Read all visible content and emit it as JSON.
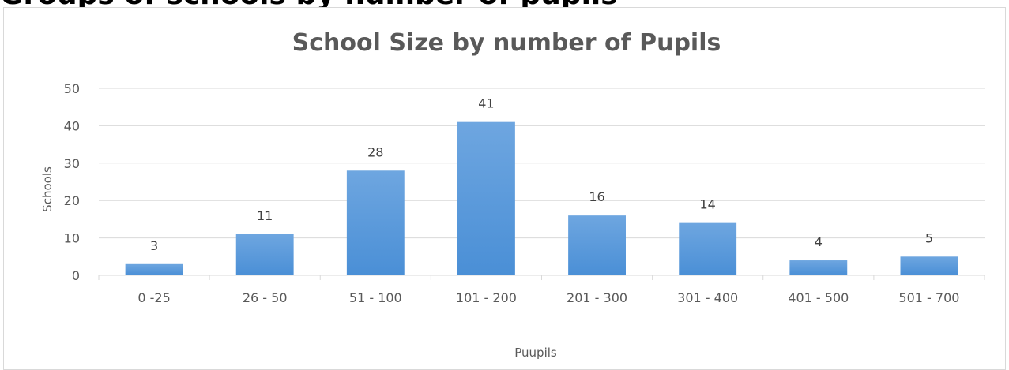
{
  "page": {
    "heading": "Groups of schools by number of pupils"
  },
  "chart_data": {
    "type": "bar",
    "title": "School Size by number of Pupils",
    "xlabel": "Puupils",
    "ylabel": "Schools",
    "categories": [
      "0 -25",
      "26 - 50",
      "51 - 100",
      "101 - 200",
      "201 - 300",
      "301 - 400",
      "401 - 500",
      "501 - 700"
    ],
    "values": [
      3,
      11,
      28,
      41,
      16,
      14,
      4,
      5
    ],
    "ylim": [
      0,
      50
    ],
    "yticks": [
      0,
      10,
      20,
      30,
      40,
      50
    ],
    "grid": true,
    "legend": "none",
    "bar_color": "#4a8fd6",
    "bar_color_light": "#6ea6e0",
    "grid_color": "#d9d9d9",
    "text_color": "#595959"
  }
}
